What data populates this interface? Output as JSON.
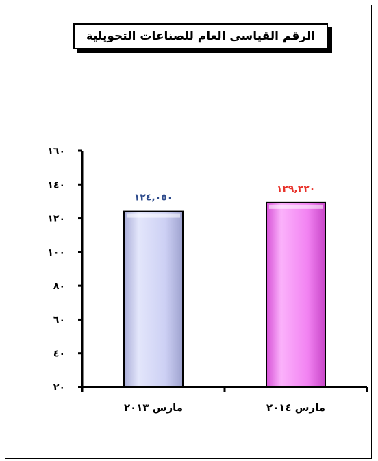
{
  "chart_data": {
    "type": "bar",
    "title": "الرقم القياسى العام للصناعات التحويلية",
    "categories": [
      "مارس ٢٠١٣",
      "مارس ٢٠١٤"
    ],
    "values": [
      124.05,
      129.22
    ],
    "data_labels": [
      "١٢٤,٠٥٠",
      "١٢٩,٢٢٠"
    ],
    "ylim": [
      20,
      160
    ],
    "yticks": [
      20,
      40,
      60,
      80,
      100,
      120,
      140,
      160
    ],
    "ytick_labels": [
      "٢٠",
      "٤٠",
      "٦٠",
      "٨٠",
      "١٠٠",
      "١٢٠",
      "١٤٠",
      "١٦٠"
    ],
    "xlabel": "",
    "ylabel": "",
    "grid": false,
    "legend": "none",
    "bar_colors": [
      "#c9cdf3",
      "#f07ef0"
    ],
    "label_colors": [
      "#2e4b8c",
      "#e8322a"
    ]
  }
}
